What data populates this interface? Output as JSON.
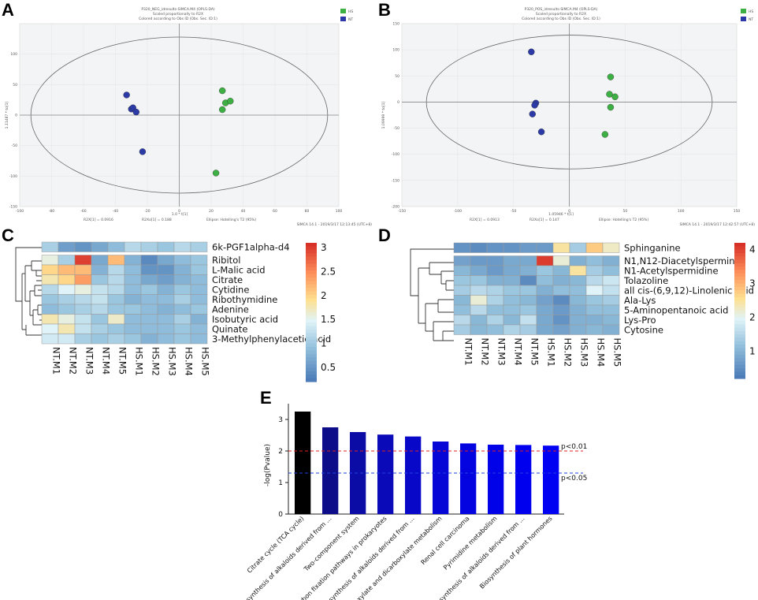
{
  "panels": {
    "A": {
      "label": "A",
      "title_lines": [
        "P320_NEG_idresults-SIMCA.M4 (OPLS-DA)",
        "Scaled proportionally to R2X",
        "Colored according to Obs ID (Obs. Sec. ID:1)"
      ],
      "legend": [
        {
          "name": "HS",
          "color": "#3cb043"
        },
        {
          "name": "NT",
          "color": "#2b3aa6"
        }
      ],
      "x_footer": "R2X[1] = 0.0916",
      "x_footer2": "R2Xo[1] = 0.188",
      "x_footer3": "Ellipse: Hotelling's T2 (95%)",
      "xlabel": "1.0 * t[1]",
      "ylabel": "1.11487 * to[1]",
      "software": "SIMCA 14.1 - 2019/3/17 12:13:45 (UTC+8)",
      "xticks": [
        "-100",
        "-80",
        "-60",
        "-40",
        "-20",
        "0",
        "20",
        "40",
        "60",
        "80",
        "100"
      ],
      "yticks": [
        "100",
        "50",
        "0",
        "-50",
        "-100",
        "-150"
      ]
    },
    "B": {
      "label": "B",
      "title_lines": [
        "P320_POS_idresults-SIMCA.M4 (OPLS-DA)",
        "Scaled proportionally to R2X",
        "Colored according to Obs ID (Obs. Sec. ID:1)"
      ],
      "legend": [
        {
          "name": "HS",
          "color": "#3cb043"
        },
        {
          "name": "NT",
          "color": "#2b3aa6"
        }
      ],
      "x_footer": "R2X[1] = 0.0913",
      "x_footer2": "R2Xo[1] = 0.147",
      "x_footer3": "Ellipse: Hotelling's T2 (95%)",
      "xlabel": "1.05946 * t[1]",
      "ylabel": "1.09999 * to[1]",
      "software": "SIMCA 14.1 - 2019/3/17 12:42:57 (UTC+8)",
      "xticks": [
        "-150",
        "-100",
        "-50",
        "0",
        "50",
        "100",
        "150"
      ],
      "yticks": [
        "150",
        "100",
        "50",
        "0",
        "-50",
        "-100",
        "-150",
        "-200"
      ]
    },
    "C": {
      "label": "C"
    },
    "D": {
      "label": "D"
    },
    "E": {
      "label": "E"
    }
  },
  "chart_data": [
    {
      "id": "A",
      "type": "scatter",
      "title": "P320_NEG_idresults-SIMCA.M4 (OPLS-DA)",
      "xlabel": "1.0 * t[1]",
      "ylabel": "1.11487 * to[1]",
      "xlim": [
        -100,
        100
      ],
      "ylim": [
        -150,
        150
      ],
      "ellipse": {
        "rx": 93,
        "ry": 128
      },
      "series": [
        {
          "name": "HS",
          "color": "#3cb043",
          "points": [
            [
              27,
              40
            ],
            [
              29,
              20
            ],
            [
              32,
              23
            ],
            [
              27,
              9
            ],
            [
              23,
              -95
            ]
          ]
        },
        {
          "name": "NT",
          "color": "#2b3aa6",
          "points": [
            [
              -33,
              33
            ],
            [
              -30,
              10
            ],
            [
              -29,
              12
            ],
            [
              -27,
              5
            ],
            [
              -23,
              -60
            ]
          ]
        }
      ]
    },
    {
      "id": "B",
      "type": "scatter",
      "title": "P320_POS_idresults-SIMCA.M4 (OPLS-DA)",
      "xlabel": "1.05946 * t[1]",
      "ylabel": "1.09999 * to[1]",
      "xlim": [
        -150,
        150
      ],
      "ylim": [
        -200,
        150
      ],
      "ellipse": {
        "rx": 128,
        "ry": 128
      },
      "series": [
        {
          "name": "HS",
          "color": "#3cb043",
          "points": [
            [
              37,
              48
            ],
            [
              36,
              15
            ],
            [
              41,
              10
            ],
            [
              37,
              -10
            ],
            [
              32,
              -62
            ]
          ]
        },
        {
          "name": "NT",
          "color": "#2b3aa6",
          "points": [
            [
              -34,
              96
            ],
            [
              -30,
              -2
            ],
            [
              -31,
              -6
            ],
            [
              -33,
              -23
            ],
            [
              -25,
              -57
            ]
          ]
        }
      ]
    },
    {
      "id": "C",
      "type": "heatmap",
      "columns": [
        "NT.M1",
        "NT.M2",
        "NT.M3",
        "NT.M4",
        "NT.M5",
        "HS.M1",
        "HS.M2",
        "HS.M3",
        "HS.M4",
        "HS.M5"
      ],
      "rows": [
        "6k-PGF1alpha-d4",
        "Ribitol",
        "L-Malic acid",
        "Citrate",
        "Cytidine",
        "Ribothymidine",
        "Adenine",
        "Isobutyric acid",
        "Quinate",
        "3-Methylphenylacetic acid"
      ],
      "values": [
        [
          1.1,
          0.6,
          0.5,
          0.7,
          0.9,
          1.2,
          1.1,
          1.0,
          1.2,
          1.1
        ],
        [
          1.6,
          1.1,
          3.0,
          0.7,
          2.2,
          0.8,
          0.4,
          0.7,
          0.9,
          1.0
        ],
        [
          2.0,
          2.2,
          2.2,
          0.8,
          1.2,
          0.9,
          0.5,
          0.5,
          0.8,
          1.0
        ],
        [
          1.8,
          2.0,
          2.4,
          1.0,
          1.2,
          0.9,
          0.7,
          0.6,
          0.8,
          0.9
        ],
        [
          1.2,
          1.5,
          1.6,
          1.3,
          1.2,
          0.9,
          1.0,
          0.8,
          1.0,
          0.9
        ],
        [
          1.0,
          1.1,
          1.2,
          1.3,
          1.0,
          0.8,
          0.9,
          0.9,
          1.1,
          0.9
        ],
        [
          0.9,
          1.0,
          1.1,
          1.2,
          1.0,
          1.0,
          0.9,
          0.8,
          0.9,
          1.0
        ],
        [
          1.8,
          1.6,
          1.3,
          1.0,
          1.7,
          0.9,
          0.9,
          0.9,
          1.1,
          0.8
        ],
        [
          1.5,
          1.8,
          1.3,
          1.1,
          1.0,
          0.9,
          0.9,
          0.9,
          1.0,
          0.9
        ],
        [
          1.4,
          1.4,
          1.1,
          1.0,
          1.1,
          1.0,
          0.8,
          0.9,
          1.0,
          0.9
        ]
      ],
      "colorbar": {
        "min": 0.2,
        "max": 3.1,
        "ticks": [
          "3",
          "2.5",
          "2",
          "1.5",
          "1",
          "0.5"
        ],
        "tick_values": [
          3,
          2.5,
          2,
          1.5,
          1,
          0.5
        ]
      }
    },
    {
      "id": "D",
      "type": "heatmap",
      "columns": [
        "NT.M1",
        "NT.M2",
        "NT.M3",
        "NT.M4",
        "NT.M5",
        "HS.M1",
        "HS.M2",
        "HS.M3",
        "HS.M4",
        "HS.M5"
      ],
      "rows": [
        "Sphinganine",
        "N1,N12-Diacetylspermine",
        "N1-Acetylspermidine",
        "Tolazoline",
        "all cis-(6,9,12)-Linolenic acid",
        "Ala-Lys",
        "5-Aminopentanoic acid",
        "Lys-Pro",
        "Cytosine"
      ],
      "values": [
        [
          0.6,
          0.5,
          0.6,
          0.6,
          0.7,
          0.7,
          2.5,
          1.4,
          2.8,
          2.3
        ],
        [
          0.8,
          0.7,
          0.7,
          0.9,
          0.9,
          4.1,
          2.2,
          1.0,
          1.2,
          1.0
        ],
        [
          1.1,
          0.9,
          0.7,
          0.9,
          1.0,
          1.3,
          1.1,
          2.5,
          1.4,
          1.2
        ],
        [
          1.3,
          1.3,
          1.0,
          1.0,
          0.5,
          1.2,
          1.0,
          1.1,
          1.6,
          1.8
        ],
        [
          1.4,
          1.6,
          1.5,
          1.3,
          1.3,
          1.0,
          1.2,
          1.2,
          2.0,
          1.7
        ],
        [
          1.1,
          2.2,
          1.5,
          1.2,
          1.1,
          0.8,
          0.5,
          1.1,
          1.3,
          1.4
        ],
        [
          1.2,
          1.6,
          1.2,
          1.2,
          1.3,
          0.9,
          0.7,
          1.0,
          1.2,
          1.2
        ],
        [
          1.6,
          1.1,
          1.5,
          1.1,
          1.7,
          0.9,
          0.6,
          1.0,
          1.0,
          1.1
        ],
        [
          1.4,
          1.1,
          1.2,
          1.5,
          1.4,
          0.9,
          0.8,
          1.0,
          1.1,
          1.0
        ]
      ],
      "colorbar": {
        "min": 0.2,
        "max": 4.2,
        "ticks": [
          "4",
          "3",
          "2",
          "1"
        ],
        "tick_values": [
          4,
          3,
          2,
          1
        ]
      }
    },
    {
      "id": "E",
      "type": "bar",
      "ylabel": "-log(Pvalue)",
      "ylim": [
        0,
        3.5
      ],
      "yticks": [
        "0",
        "1",
        "2",
        "3"
      ],
      "categories": [
        "Citrate cycle (TCA cycle)",
        "Biosynthesis of alkaloids derived from ...",
        "Two-component system",
        "Carbon fixation pathways in prokaryotes",
        "Biosynthesis of alkaloids derived from ...",
        "Glyoxylate and dicarboxylate metabolism",
        "Renal cell carcinoma",
        "Pyrimidine metabolism",
        "Biosynthesis of alkaloids derived from ...",
        "Biosynthesis of plant hormones"
      ],
      "values": [
        3.25,
        2.75,
        2.6,
        2.52,
        2.46,
        2.3,
        2.24,
        2.2,
        2.19,
        2.17
      ],
      "colors": [
        "#000000",
        "#0d0d8a",
        "#0b0ba6",
        "#0a0ab8",
        "#0808c8",
        "#0606d6",
        "#0404e0",
        "#0202e8",
        "#0000ee",
        "#0000f2"
      ],
      "thresholds": [
        {
          "label": "p<0.01",
          "value": 2.0,
          "color": "#e02020"
        },
        {
          "label": "p<0.05",
          "value": 1.3,
          "color": "#2040e0"
        }
      ]
    }
  ]
}
